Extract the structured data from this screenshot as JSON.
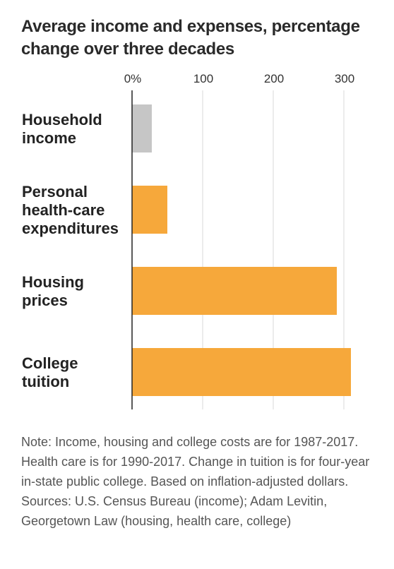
{
  "chart_data": {
    "type": "bar",
    "orientation": "horizontal",
    "title": "Average income and expenses, percentage change over three decades",
    "categories": [
      [
        "Household",
        "income"
      ],
      [
        "Personal",
        "health-care",
        "expenditures"
      ],
      [
        "Housing",
        "prices"
      ],
      [
        "College",
        "tuition"
      ]
    ],
    "values": [
      28,
      50,
      290,
      310
    ],
    "colors": [
      "#c6c6c6",
      "#f6a83b",
      "#f6a83b",
      "#f6a83b"
    ],
    "xlim": [
      0,
      320
    ],
    "xticks": [
      0,
      100,
      200,
      300
    ],
    "xtick_labels": [
      "0%",
      "100",
      "200",
      "300"
    ],
    "grid": true,
    "xaxis_position": "top"
  },
  "notes": {
    "note": "Note: Income, housing and college costs are for 1987-2017. Health care is for 1990-2017. Change in tuition is for four-year in-state public college. Based on inflation-adjusted dollars.",
    "sources": "Sources: U.S. Census Bureau (income); Adam Levitin, Georgetown Law (housing, health care, college)"
  }
}
